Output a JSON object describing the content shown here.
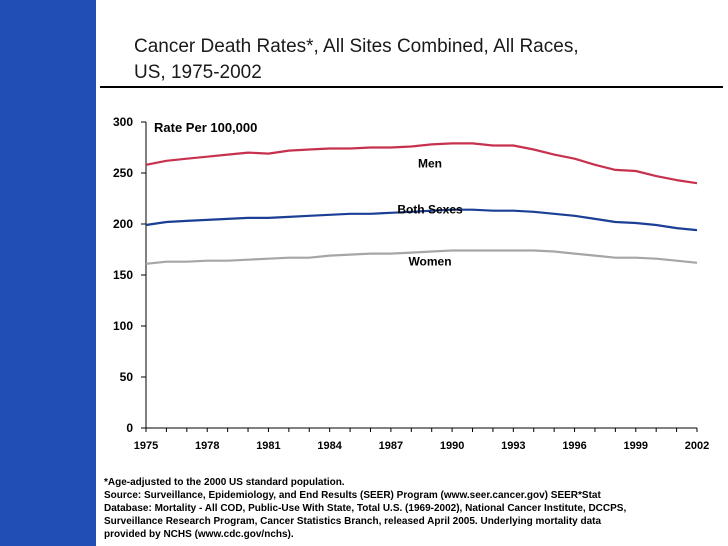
{
  "title": {
    "line1": "Cancer Death Rates*, All Sites Combined, All Races,",
    "line2": "US, 1975-2002"
  },
  "footnotes": [
    "*Age-adjusted to the 2000 US standard population.",
    "Source: Surveillance, Epidemiology, and End Results (SEER) Program (www.seer.cancer.gov) SEER*Stat",
    "Database: Mortality - All COD, Public-Use With State, Total U.S. (1969-2002), National Cancer Institute, DCCPS,",
    "Surveillance Research Program, Cancer Statistics Branch, released April 2005. Underlying mortality data",
    "provided by NCHS (www.cdc.gov/nchs)."
  ],
  "colors": {
    "sidebar": "#1f4fb3",
    "men": "#c8314e",
    "both": "#1a3f95",
    "women": "#a6a6a6"
  },
  "chart_data": {
    "type": "line",
    "ylabel": "Rate Per 100,000",
    "xlim": [
      1975,
      2002
    ],
    "ylim": [
      0,
      300
    ],
    "yticks": [
      0,
      50,
      100,
      150,
      200,
      250,
      300
    ],
    "xticks": [
      1975,
      1978,
      1981,
      1984,
      1987,
      1990,
      1993,
      1996,
      1999,
      2002
    ],
    "grid": false,
    "x": [
      1975,
      1976,
      1977,
      1978,
      1979,
      1980,
      1981,
      1982,
      1983,
      1984,
      1985,
      1986,
      1987,
      1988,
      1989,
      1990,
      1991,
      1992,
      1993,
      1994,
      1995,
      1996,
      1997,
      1998,
      1999,
      2000,
      2001,
      2002
    ],
    "series": [
      {
        "name": "Men",
        "color": "#c8314e",
        "values": [
          258,
          262,
          264,
          266,
          268,
          270,
          269,
          272,
          273,
          274,
          274,
          275,
          275,
          276,
          278,
          279,
          279,
          277,
          277,
          273,
          268,
          264,
          258,
          253,
          252,
          247,
          243,
          240
        ]
      },
      {
        "name": "Both Sexes",
        "color": "#1a3f95",
        "values": [
          199,
          202,
          203,
          204,
          205,
          206,
          206,
          207,
          208,
          209,
          210,
          210,
          211,
          212,
          213,
          214,
          214,
          213,
          213,
          212,
          210,
          208,
          205,
          202,
          201,
          199,
          196,
          194
        ]
      },
      {
        "name": "Women",
        "color": "#a6a6a6",
        "values": [
          161,
          163,
          163,
          164,
          164,
          165,
          166,
          167,
          167,
          169,
          170,
          171,
          171,
          172,
          173,
          174,
          174,
          174,
          174,
          174,
          173,
          171,
          169,
          167,
          167,
          166,
          164,
          162
        ]
      }
    ]
  }
}
